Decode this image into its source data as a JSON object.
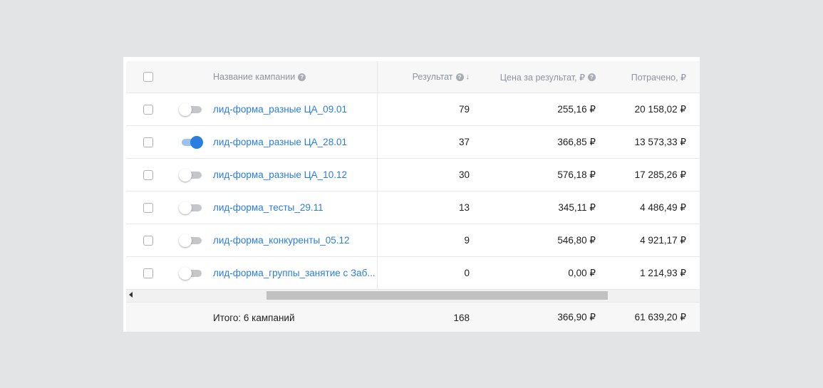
{
  "header": {
    "name": "Название кампании",
    "result": "Результат",
    "sort_arrow": "↓",
    "price": "Цена за результат, ₽",
    "spent": "Потрачено, ₽",
    "help_glyph": "?"
  },
  "rows": [
    {
      "toggle": "off",
      "name": "лид-форма_разные ЦА_09.01",
      "result": "79",
      "price": "255,16 ₽",
      "spent": "20 158,02 ₽"
    },
    {
      "toggle": "on",
      "name": "лид-форма_разные ЦА_28.01",
      "result": "37",
      "price": "366,85 ₽",
      "spent": "13 573,33 ₽"
    },
    {
      "toggle": "off",
      "name": "лид-форма_разные ЦА_10.12",
      "result": "30",
      "price": "576,18 ₽",
      "spent": "17 285,26 ₽"
    },
    {
      "toggle": "off",
      "name": "лид-форма_тесты_29.11",
      "result": "13",
      "price": "345,11 ₽",
      "spent": "4 486,49 ₽"
    },
    {
      "toggle": "off",
      "name": "лид-форма_конкуренты_05.12",
      "result": "9",
      "price": "546,80 ₽",
      "spent": "4 921,17 ₽"
    },
    {
      "toggle": "off",
      "name": "лид-форма_группы_занятие с Заб...",
      "result": "0",
      "price": "0,00 ₽",
      "spent": "1 214,93 ₽"
    }
  ],
  "footer": {
    "label": "Итого: 6 кампаний",
    "result": "168",
    "price": "366,90 ₽",
    "spent": "61 639,20 ₽"
  },
  "colors": {
    "accent": "#2a7de1",
    "background": "#e3e4e6"
  }
}
